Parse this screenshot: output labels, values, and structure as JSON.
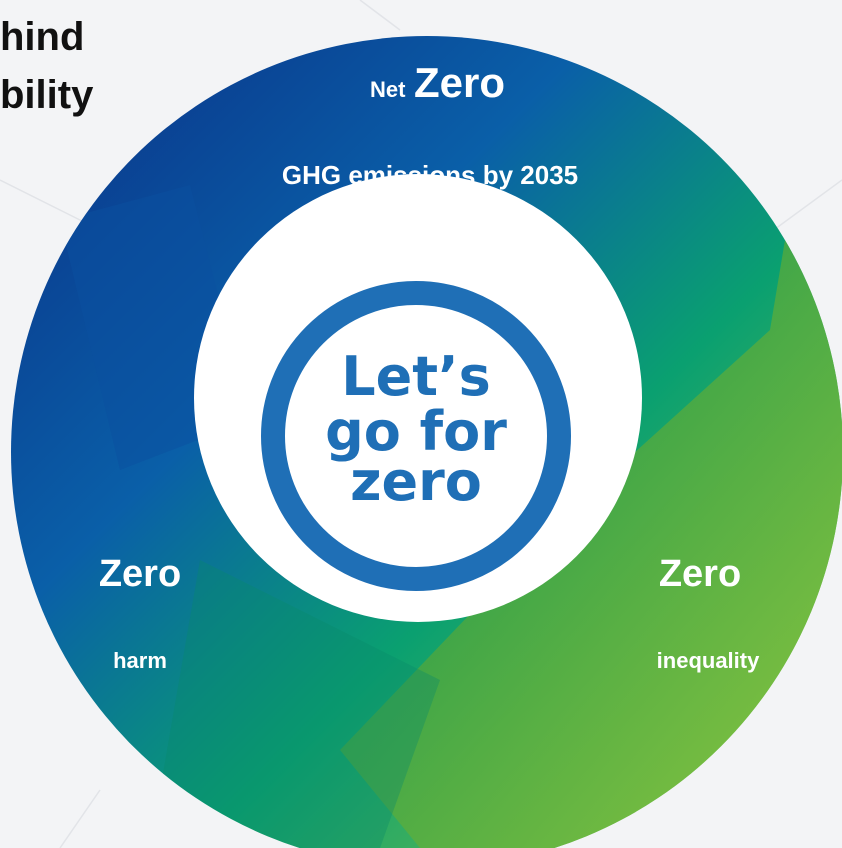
{
  "header": {
    "title_lines": [
      "hind",
      "bility"
    ]
  },
  "segments": [
    {
      "prefix": "Net",
      "label": "Zero",
      "description": "GHG emissions by 2035"
    },
    {
      "label": "Zero",
      "description": "harm"
    },
    {
      "label": "Zero",
      "description": "inequality"
    }
  ],
  "center": {
    "lines": [
      "Let’s",
      "go for",
      "zero"
    ]
  }
}
